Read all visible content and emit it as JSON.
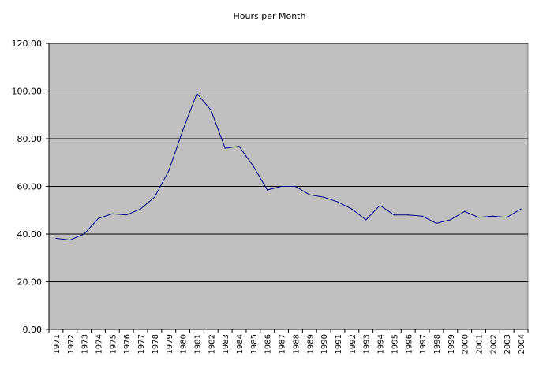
{
  "chart_data": {
    "type": "line",
    "title": "Hours per Month",
    "xlabel": "",
    "ylabel": "",
    "ylim": [
      0,
      120
    ],
    "y_ticks": [
      "0.00",
      "20.00",
      "40.00",
      "60.00",
      "80.00",
      "100.00",
      "120.00"
    ],
    "grid": true,
    "legend": "none",
    "colors": {
      "plot_background": "#c0c0c0",
      "line": "#000080",
      "gridline": "#000000"
    },
    "categories": [
      "1971",
      "1972",
      "1973",
      "1974",
      "1975",
      "1976",
      "1977",
      "1978",
      "1979",
      "1980",
      "1981",
      "1982",
      "1983",
      "1984",
      "1985",
      "1986",
      "1987",
      "1988",
      "1989",
      "1990",
      "1991",
      "1992",
      "1993",
      "1994",
      "1995",
      "1996",
      "1997",
      "1998",
      "1999",
      "2000",
      "2001",
      "2002",
      "2003",
      "2004"
    ],
    "series": [
      {
        "values": [
          38.2,
          37.5,
          40.0,
          46.5,
          48.5,
          48.0,
          50.5,
          55.5,
          66.5,
          83.5,
          99.0,
          92.0,
          76.0,
          76.8,
          68.5,
          58.5,
          60.0,
          60.0,
          56.5,
          55.5,
          53.5,
          50.5,
          46.0,
          52.0,
          48.0,
          48.0,
          47.5,
          44.5,
          46.0,
          49.5,
          47.0,
          47.5,
          47.0,
          50.5
        ]
      }
    ]
  }
}
